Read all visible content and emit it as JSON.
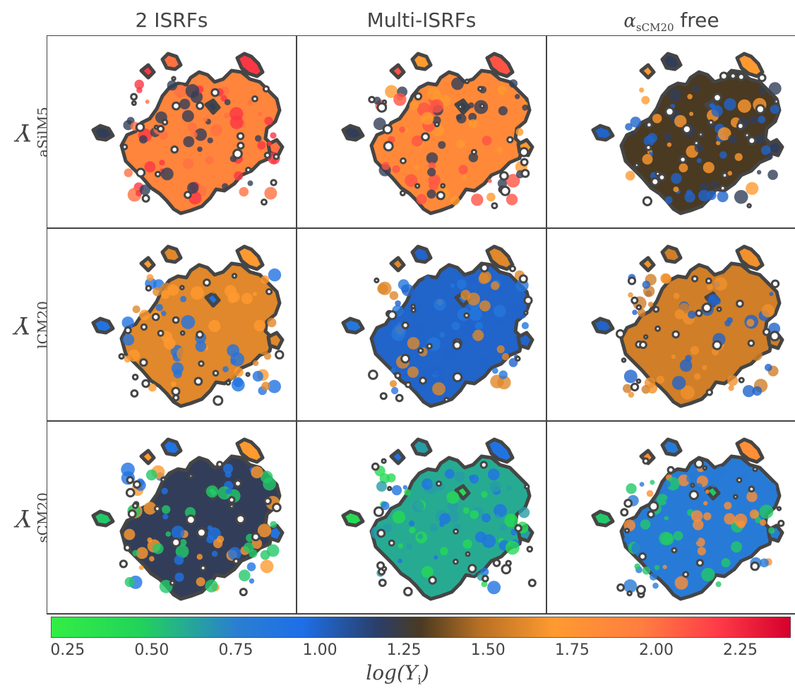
{
  "chart_data": {
    "type": "heatmap",
    "layout": "3x3 grid of maps",
    "columns": [
      {
        "title": "2 ISRFs"
      },
      {
        "title": "Multi-ISRFs"
      },
      {
        "title_symbol": "α",
        "title_sub": "sCM20",
        "title_suffix": " free"
      }
    ],
    "rows": [
      {
        "symbol": "Y",
        "sub": "aSilM5"
      },
      {
        "symbol": "Y",
        "sub": "lCM20"
      },
      {
        "symbol": "Y",
        "sub": "sCM20"
      }
    ],
    "colorbar": {
      "label_prefix": "log(",
      "label_symbol": "Y",
      "label_sub": "i",
      "label_suffix": ")",
      "range": [
        0.2,
        2.4
      ],
      "ticks": [
        "0.25",
        "0.50",
        "0.75",
        "1.00",
        "1.25",
        "1.50",
        "1.75",
        "2.00",
        "2.25"
      ],
      "tick_values": [
        0.25,
        0.5,
        0.75,
        1.0,
        1.25,
        1.5,
        1.75,
        2.0,
        2.25
      ],
      "colors": [
        "#33ee44",
        "#22d35a",
        "#2a7fd0",
        "#1e6fe8",
        "#2a3f6a",
        "#4a3a22",
        "#b87024",
        "#ff9a30",
        "#ff7d40",
        "#ff3c48",
        "#d4002c"
      ],
      "color_stops": [
        0,
        0.12,
        0.25,
        0.34,
        0.44,
        0.5,
        0.58,
        0.68,
        0.8,
        0.9,
        1
      ]
    },
    "panels": [
      {
        "row": 0,
        "col": 0,
        "dominant_value": 1.9,
        "mix": [
          1.2,
          2.0,
          2.2
        ]
      },
      {
        "row": 0,
        "col": 1,
        "dominant_value": 1.85,
        "mix": [
          1.2,
          1.7,
          2.1
        ]
      },
      {
        "row": 0,
        "col": 2,
        "dominant_value": 1.3,
        "mix": [
          1.0,
          1.2,
          1.7
        ]
      },
      {
        "row": 1,
        "col": 0,
        "dominant_value": 1.6,
        "mix": [
          0.9,
          1.6,
          1.7
        ]
      },
      {
        "row": 1,
        "col": 1,
        "dominant_value": 1.0,
        "mix": [
          0.85,
          1.0,
          1.6
        ]
      },
      {
        "row": 1,
        "col": 2,
        "dominant_value": 1.55,
        "mix": [
          1.0,
          1.55,
          1.65
        ]
      },
      {
        "row": 2,
        "col": 0,
        "dominant_value": 1.2,
        "mix": [
          0.5,
          0.9,
          1.7
        ]
      },
      {
        "row": 2,
        "col": 1,
        "dominant_value": 0.6,
        "mix": [
          0.4,
          0.65,
          0.9
        ]
      },
      {
        "row": 2,
        "col": 2,
        "dominant_value": 0.8,
        "mix": [
          0.5,
          0.8,
          1.8
        ]
      }
    ]
  }
}
